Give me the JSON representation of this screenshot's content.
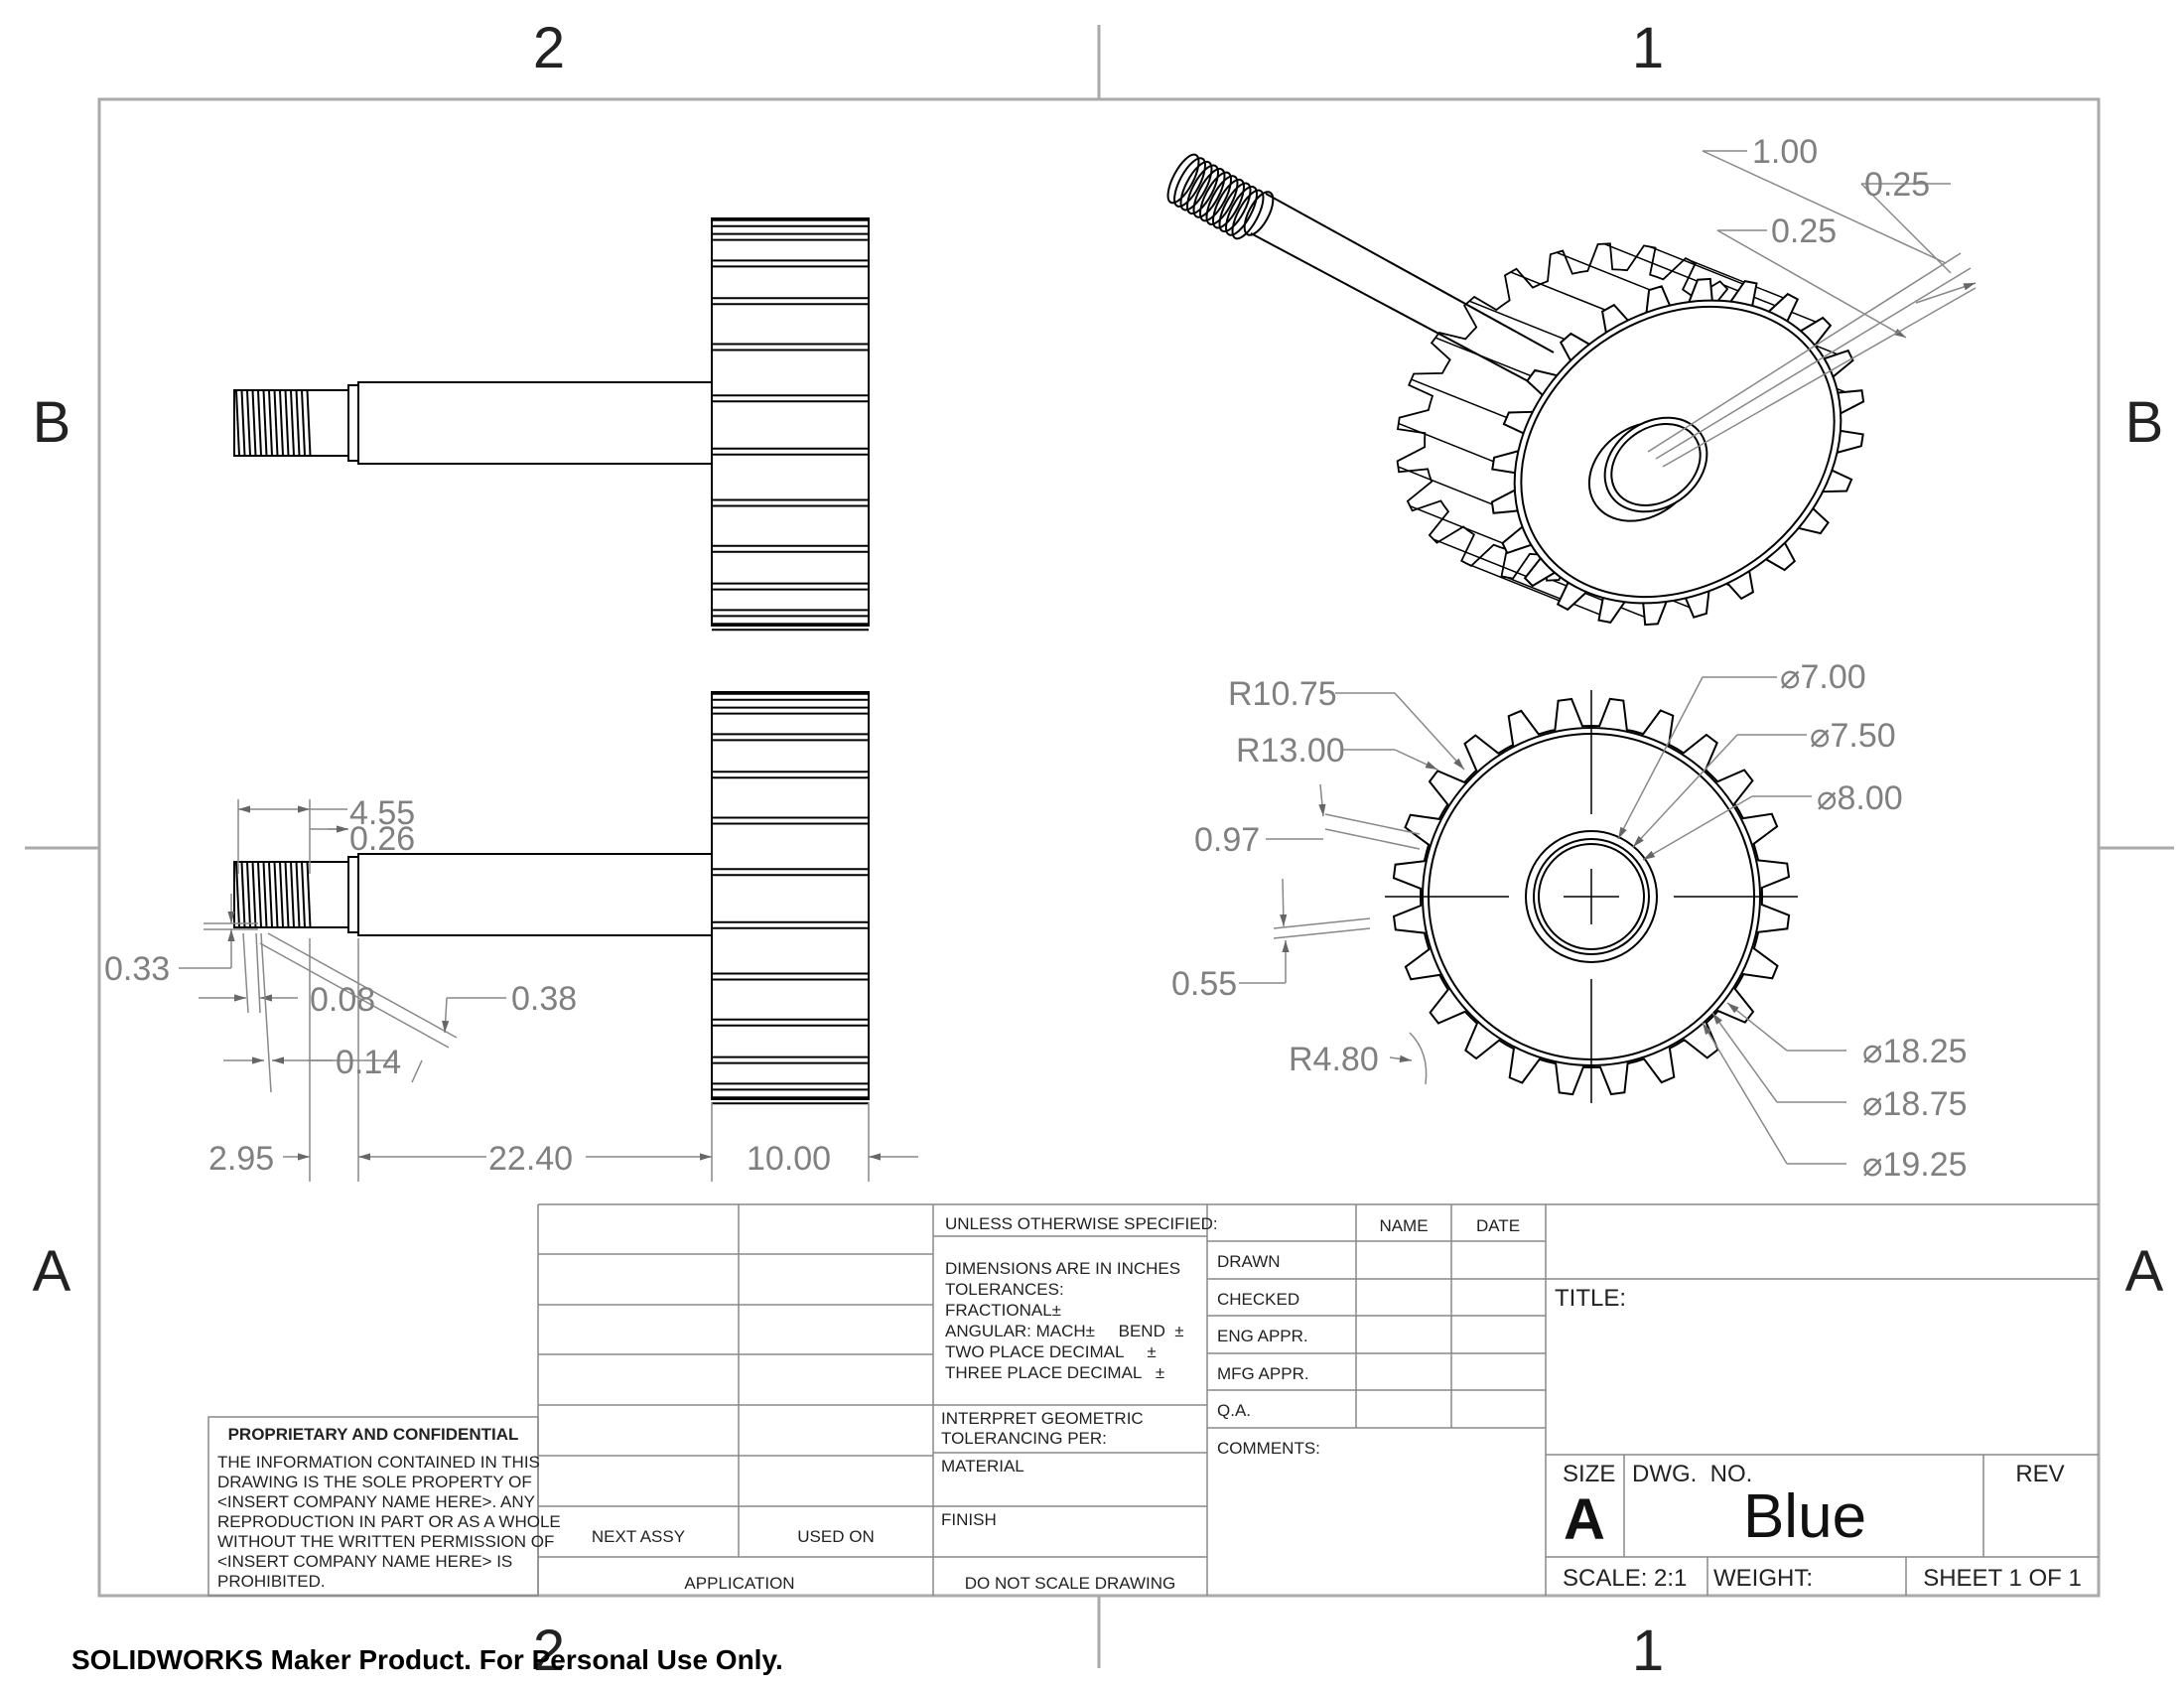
{
  "zones": {
    "top": [
      "2",
      "1"
    ],
    "bottom": [
      "2",
      "1"
    ],
    "left": [
      "B",
      "A"
    ],
    "right": [
      "B",
      "A"
    ]
  },
  "dimensions": {
    "iso": [
      "1.00",
      "0.25",
      "0.25"
    ],
    "front": [
      "⌀7.00",
      "⌀7.50",
      "⌀8.00",
      "R10.75",
      "R13.00",
      "0.97",
      "0.55",
      "R4.80",
      "⌀18.25",
      "⌀18.75",
      "⌀19.25"
    ],
    "side": [
      "4.55",
      "0.26",
      "0.33",
      "0.08",
      "0.38",
      "0.14",
      "2.95",
      "22.40",
      "10.00"
    ]
  },
  "title_block": {
    "proprietary_heading": "PROPRIETARY AND CONFIDENTIAL",
    "proprietary_lines": [
      "THE INFORMATION CONTAINED IN THIS",
      "DRAWING IS THE SOLE PROPERTY OF",
      "<INSERT COMPANY NAME HERE>.  ANY",
      "REPRODUCTION IN PART OR AS A WHOLE",
      "WITHOUT THE WRITTEN PERMISSION OF",
      "<INSERT COMPANY NAME HERE> IS",
      "PROHIBITED."
    ],
    "next_assy": "NEXT ASSY",
    "used_on": "USED ON",
    "application": "APPLICATION",
    "unless": "UNLESS OTHERWISE SPECIFIED:",
    "tolerance_lines": [
      "DIMENSIONS ARE IN INCHES",
      "TOLERANCES:",
      "FRACTIONAL±",
      "ANGULAR: MACH±     BEND  ±",
      "TWO PLACE DECIMAL     ±",
      "THREE PLACE DECIMAL   ±"
    ],
    "interpret": [
      "INTERPRET GEOMETRIC",
      "TOLERANCING PER:"
    ],
    "material": "MATERIAL",
    "finish": "FINISH",
    "do_not_scale": "DO NOT SCALE DRAWING",
    "name_header": "NAME",
    "date_header": "DATE",
    "approvals": [
      "DRAWN",
      "CHECKED",
      "ENG APPR.",
      "MFG APPR.",
      "Q.A."
    ],
    "comments": "COMMENTS:",
    "title_label": "TITLE:",
    "size_label": "SIZE",
    "size_value": "A",
    "dwg_no_label": "DWG.  NO.",
    "dwg_no_value": "Blue",
    "rev_label": "REV",
    "scale": "SCALE: 2:1",
    "weight": "WEIGHT:",
    "sheet": "SHEET 1 OF 1"
  },
  "footer": "SOLIDWORKS Maker Product. For Personal Use Only."
}
